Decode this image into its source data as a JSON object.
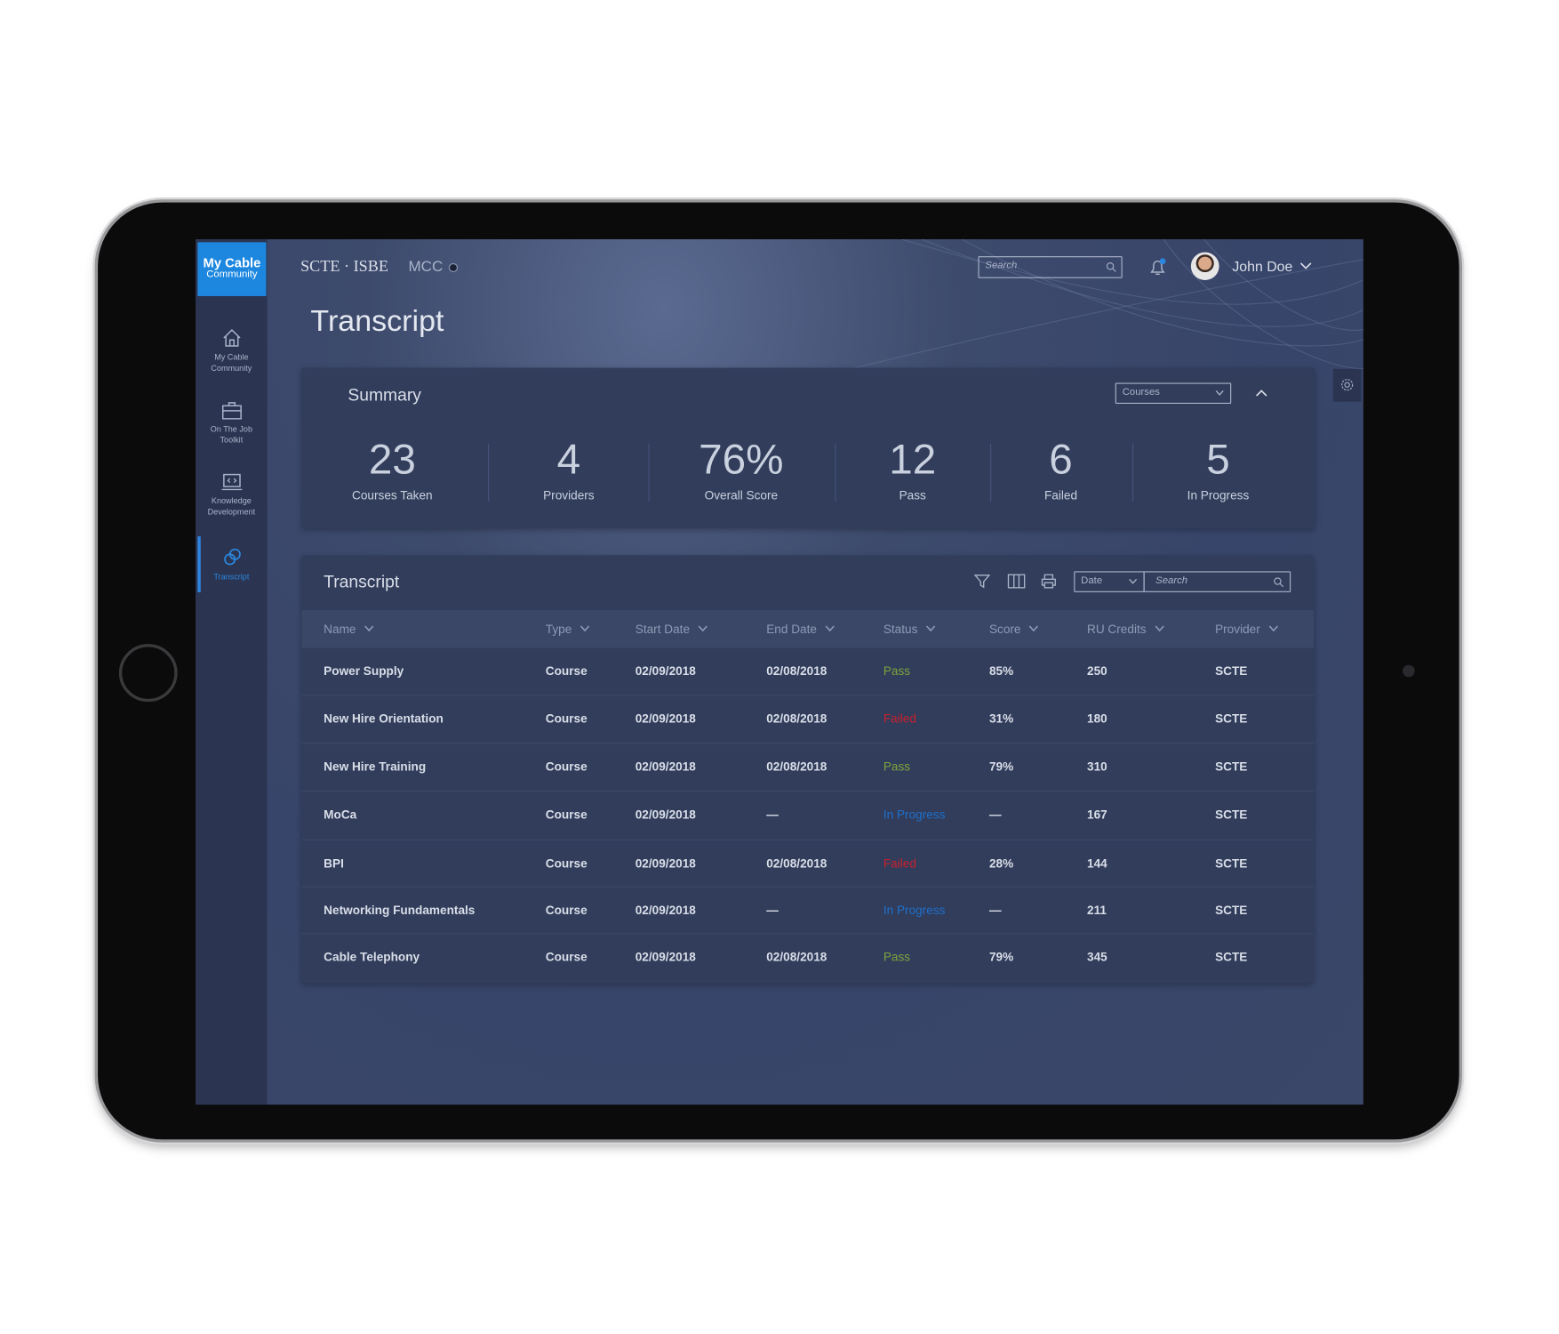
{
  "sidebar": {
    "logo_top": "My Cable",
    "logo_bottom": "Community",
    "nav": [
      {
        "label": "My Cable Community"
      },
      {
        "label": "On The Job Toolkit"
      },
      {
        "label": "Knowledge Development"
      },
      {
        "label": "Transcript"
      }
    ]
  },
  "header": {
    "brand": "SCTE · ISBE",
    "app": "MCC",
    "search_placeholder": "Search",
    "user": "John Doe"
  },
  "page_title": "Transcript",
  "summary": {
    "title": "Summary",
    "filter": "Courses",
    "stats": [
      {
        "value": "23",
        "label": "Courses Taken"
      },
      {
        "value": "4",
        "label": "Providers"
      },
      {
        "value": "76%",
        "label": "Overall Score"
      },
      {
        "value": "12",
        "label": "Pass"
      },
      {
        "value": "6",
        "label": "Failed"
      },
      {
        "value": "5",
        "label": "In Progress"
      }
    ]
  },
  "transcript": {
    "title": "Transcript",
    "date_filter": "Date",
    "search_placeholder": "Search",
    "columns": [
      "Name",
      "Type",
      "Start Date",
      "End Date",
      "Status",
      "Score",
      "RU Credits",
      "Provider"
    ],
    "rows": [
      [
        "Power  Supply",
        "Course",
        "02/09/2018",
        "02/08/2018",
        "Pass",
        "85%",
        "250",
        "SCTE"
      ],
      [
        "New Hire Orientation",
        "Course",
        "02/09/2018",
        "02/08/2018",
        "Failed",
        "31%",
        "180",
        "SCTE"
      ],
      [
        "New Hire Training",
        "Course",
        "02/09/2018",
        "02/08/2018",
        "Pass",
        "79%",
        "310",
        "SCTE"
      ],
      [
        "MoCa",
        "Course",
        "02/09/2018",
        "—",
        "In Progress",
        "—",
        "167",
        "SCTE"
      ],
      [
        "BPI",
        "Course",
        "02/09/2018",
        "02/08/2018",
        "Failed",
        "28%",
        "144",
        "SCTE"
      ],
      [
        "Networking Fundamentals",
        "Course",
        "02/09/2018",
        "—",
        "In Progress",
        "—",
        "211",
        "SCTE"
      ],
      [
        "Cable Telephony",
        "Course",
        "02/09/2018",
        "02/08/2018",
        "Pass",
        "79%",
        "345",
        "SCTE"
      ]
    ],
    "status_colors": [
      "#7fa33c",
      "#c8212f",
      "#7fa33c",
      "#1f6fc9",
      "#c8212f",
      "#1f6fc9",
      "#7fa33c"
    ]
  }
}
